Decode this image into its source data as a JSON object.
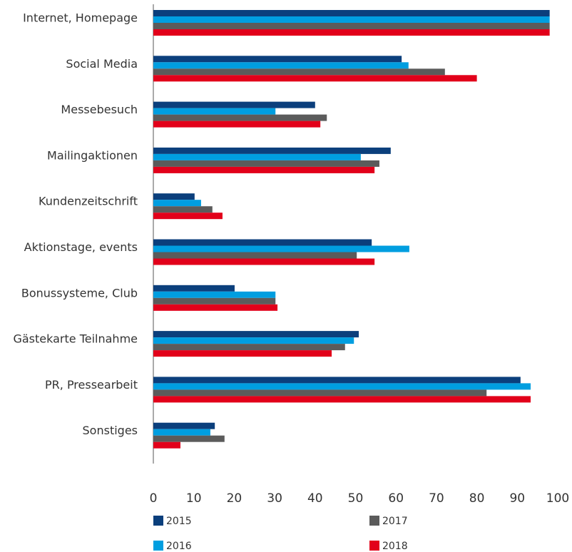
{
  "chart_data": {
    "type": "hbar",
    "categories": [
      "Internet, Homepage",
      "Social Media",
      "Messebesuch",
      "Mailingaktionen",
      "Kundenzeitschrift",
      "Aktionstage, events",
      "Bonussysteme, Club",
      "Gästekarte Teilnahme",
      "PR, Pressearbeit",
      "Sonstiges"
    ],
    "series": [
      {
        "name": "2015",
        "color": "#0b3f7c",
        "values": [
          98,
          61.4,
          40,
          58.7,
          10.2,
          54,
          20.1,
          50.8,
          90.8,
          15.2
        ]
      },
      {
        "name": "2016",
        "color": "#009ee0",
        "values": [
          98,
          63.1,
          30.2,
          51.3,
          11.8,
          63.3,
          30.2,
          49.6,
          93.3,
          14.1
        ]
      },
      {
        "name": "2017",
        "color": "#5b5b5b",
        "values": [
          98,
          72.1,
          42.9,
          55.9,
          14.6,
          50.3,
          30.2,
          47.4,
          82.4,
          17.6
        ]
      },
      {
        "name": "2018",
        "color": "#e2001a",
        "values": [
          98,
          80,
          41.3,
          54.7,
          17.1,
          54.7,
          30.7,
          44.1,
          93.3,
          6.7
        ]
      }
    ],
    "xlim": [
      0,
      100
    ],
    "xticks": [
      0,
      10,
      20,
      30,
      40,
      50,
      60,
      70,
      80,
      90,
      100
    ],
    "grid": false
  }
}
